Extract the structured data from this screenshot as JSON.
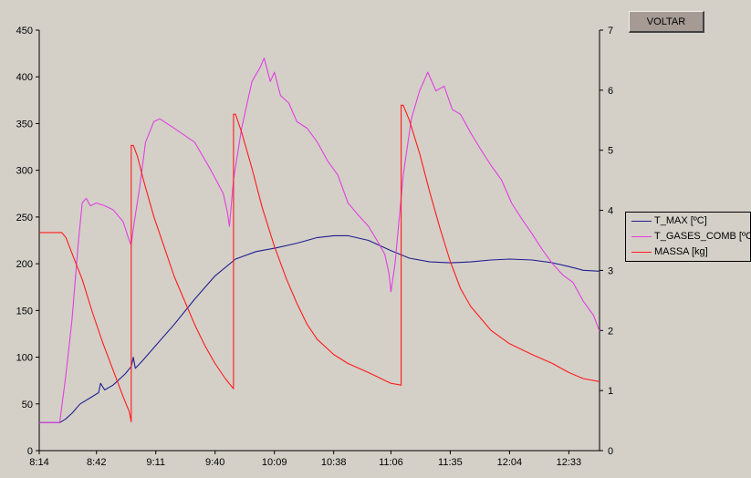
{
  "button": {
    "label": "VOLTAR"
  },
  "colors": {
    "t_max": "#1f1f8f",
    "t_gases": "#e040e0",
    "massa": "#ff1a1a",
    "axis": "#000000",
    "background": "#d4d0c8"
  },
  "chart_data": {
    "type": "line",
    "title": "",
    "x_ticks": [
      "8:14",
      "8:42",
      "9:11",
      "9:40",
      "10:09",
      "10:38",
      "11:06",
      "11:35",
      "12:04",
      "12:33"
    ],
    "xlim": [
      "8:14",
      "12:48"
    ],
    "ylim_left": [
      0,
      450
    ],
    "y_ticks_left": [
      0,
      50,
      100,
      150,
      200,
      250,
      300,
      350,
      400,
      450
    ],
    "ylim_right": [
      0,
      7
    ],
    "y_ticks_right": [
      0,
      1,
      2,
      3,
      4,
      5,
      6,
      7
    ],
    "grid": false,
    "legend": "right",
    "series": [
      {
        "name": "T_MAX [ºC]",
        "axis": "left",
        "color": "#1f1f8f",
        "points": [
          [
            "8:14",
            30
          ],
          [
            "8:24",
            30
          ],
          [
            "8:27",
            34
          ],
          [
            "8:30",
            40
          ],
          [
            "8:34",
            50
          ],
          [
            "8:40",
            58
          ],
          [
            "8:43",
            62
          ],
          [
            "8:44",
            72
          ],
          [
            "8:46",
            65
          ],
          [
            "8:50",
            70
          ],
          [
            "8:56",
            82
          ],
          [
            "8:59",
            90
          ],
          [
            "9:00",
            100
          ],
          [
            "9:01",
            88
          ],
          [
            "9:04",
            95
          ],
          [
            "9:10",
            110
          ],
          [
            "9:20",
            135
          ],
          [
            "9:30",
            162
          ],
          [
            "9:40",
            187
          ],
          [
            "9:50",
            205
          ],
          [
            "10:00",
            213
          ],
          [
            "10:10",
            217
          ],
          [
            "10:20",
            222
          ],
          [
            "10:30",
            228
          ],
          [
            "10:38",
            230
          ],
          [
            "10:45",
            230
          ],
          [
            "10:55",
            225
          ],
          [
            "11:06",
            214
          ],
          [
            "11:15",
            206
          ],
          [
            "11:25",
            202
          ],
          [
            "11:35",
            201
          ],
          [
            "11:45",
            202
          ],
          [
            "11:55",
            204
          ],
          [
            "12:04",
            205
          ],
          [
            "12:15",
            204
          ],
          [
            "12:25",
            201
          ],
          [
            "12:33",
            197
          ],
          [
            "12:40",
            193
          ],
          [
            "12:48",
            192
          ]
        ]
      },
      {
        "name": "T_GASES_COMB [ºC]",
        "axis": "left",
        "color": "#e040e0",
        "points": [
          [
            "8:14",
            30
          ],
          [
            "8:24",
            30
          ],
          [
            "8:27",
            80
          ],
          [
            "8:30",
            140
          ],
          [
            "8:33",
            220
          ],
          [
            "8:35",
            265
          ],
          [
            "8:37",
            270
          ],
          [
            "8:39",
            262
          ],
          [
            "8:42",
            265
          ],
          [
            "8:46",
            262
          ],
          [
            "8:50",
            258
          ],
          [
            "8:55",
            245
          ],
          [
            "8:58",
            225
          ],
          [
            "8:59",
            220
          ],
          [
            "9:00",
            238
          ],
          [
            "9:03",
            280
          ],
          [
            "9:06",
            330
          ],
          [
            "9:10",
            352
          ],
          [
            "9:13",
            355
          ],
          [
            "9:20",
            345
          ],
          [
            "9:30",
            330
          ],
          [
            "9:38",
            300
          ],
          [
            "9:44",
            275
          ],
          [
            "9:46",
            255
          ],
          [
            "9:47",
            240
          ],
          [
            "9:49",
            290
          ],
          [
            "9:53",
            345
          ],
          [
            "9:58",
            395
          ],
          [
            "10:02",
            410
          ],
          [
            "10:04",
            420
          ],
          [
            "10:07",
            395
          ],
          [
            "10:09",
            405
          ],
          [
            "10:12",
            380
          ],
          [
            "10:16",
            372
          ],
          [
            "10:20",
            352
          ],
          [
            "10:25",
            345
          ],
          [
            "10:30",
            330
          ],
          [
            "10:35",
            310
          ],
          [
            "10:40",
            295
          ],
          [
            "10:45",
            265
          ],
          [
            "10:50",
            252
          ],
          [
            "10:55",
            240
          ],
          [
            "11:00",
            222
          ],
          [
            "11:03",
            210
          ],
          [
            "11:05",
            190
          ],
          [
            "11:06",
            170
          ],
          [
            "11:08",
            200
          ],
          [
            "11:12",
            295
          ],
          [
            "11:16",
            355
          ],
          [
            "11:20",
            385
          ],
          [
            "11:24",
            405
          ],
          [
            "11:28",
            385
          ],
          [
            "11:32",
            390
          ],
          [
            "11:36",
            365
          ],
          [
            "11:40",
            360
          ],
          [
            "11:45",
            340
          ],
          [
            "11:50",
            322
          ],
          [
            "11:55",
            305
          ],
          [
            "12:00",
            290
          ],
          [
            "12:05",
            265
          ],
          [
            "12:10",
            248
          ],
          [
            "12:15",
            232
          ],
          [
            "12:20",
            215
          ],
          [
            "12:25",
            200
          ],
          [
            "12:30",
            188
          ],
          [
            "12:35",
            180
          ],
          [
            "12:40",
            160
          ],
          [
            "12:45",
            145
          ],
          [
            "12:48",
            128
          ]
        ]
      },
      {
        "name": "MASSA [kg]",
        "axis": "right",
        "color": "#ff1a1a",
        "points": [
          [
            "8:14",
            3.63
          ],
          [
            "8:25",
            3.63
          ],
          [
            "8:27",
            3.55
          ],
          [
            "8:31",
            3.2
          ],
          [
            "8:35",
            2.85
          ],
          [
            "8:40",
            2.3
          ],
          [
            "8:45",
            1.8
          ],
          [
            "8:50",
            1.35
          ],
          [
            "8:55",
            0.9
          ],
          [
            "8:58",
            0.65
          ],
          [
            "8:59",
            0.48
          ],
          [
            "8:59",
            5.08
          ],
          [
            "9:00",
            5.08
          ],
          [
            "9:02",
            4.9
          ],
          [
            "9:05",
            4.5
          ],
          [
            "9:10",
            3.9
          ],
          [
            "9:15",
            3.4
          ],
          [
            "9:20",
            2.9
          ],
          [
            "9:25",
            2.5
          ],
          [
            "9:30",
            2.1
          ],
          [
            "9:35",
            1.75
          ],
          [
            "9:40",
            1.45
          ],
          [
            "9:45",
            1.2
          ],
          [
            "9:49",
            1.03
          ],
          [
            "9:49",
            5.6
          ],
          [
            "9:50",
            5.6
          ],
          [
            "9:53",
            5.3
          ],
          [
            "9:58",
            4.7
          ],
          [
            "10:03",
            4.05
          ],
          [
            "10:09",
            3.4
          ],
          [
            "10:15",
            2.85
          ],
          [
            "10:20",
            2.45
          ],
          [
            "10:25",
            2.1
          ],
          [
            "10:30",
            1.85
          ],
          [
            "10:38",
            1.6
          ],
          [
            "10:45",
            1.45
          ],
          [
            "10:55",
            1.3
          ],
          [
            "11:06",
            1.12
          ],
          [
            "11:11",
            1.09
          ],
          [
            "11:11",
            5.75
          ],
          [
            "11:12",
            5.75
          ],
          [
            "11:15",
            5.5
          ],
          [
            "11:20",
            4.95
          ],
          [
            "11:25",
            4.3
          ],
          [
            "11:30",
            3.7
          ],
          [
            "11:35",
            3.15
          ],
          [
            "11:40",
            2.7
          ],
          [
            "11:45",
            2.4
          ],
          [
            "11:50",
            2.2
          ],
          [
            "11:55",
            2.0
          ],
          [
            "12:04",
            1.78
          ],
          [
            "12:15",
            1.6
          ],
          [
            "12:25",
            1.45
          ],
          [
            "12:33",
            1.3
          ],
          [
            "12:40",
            1.2
          ],
          [
            "12:48",
            1.15
          ]
        ]
      }
    ]
  }
}
